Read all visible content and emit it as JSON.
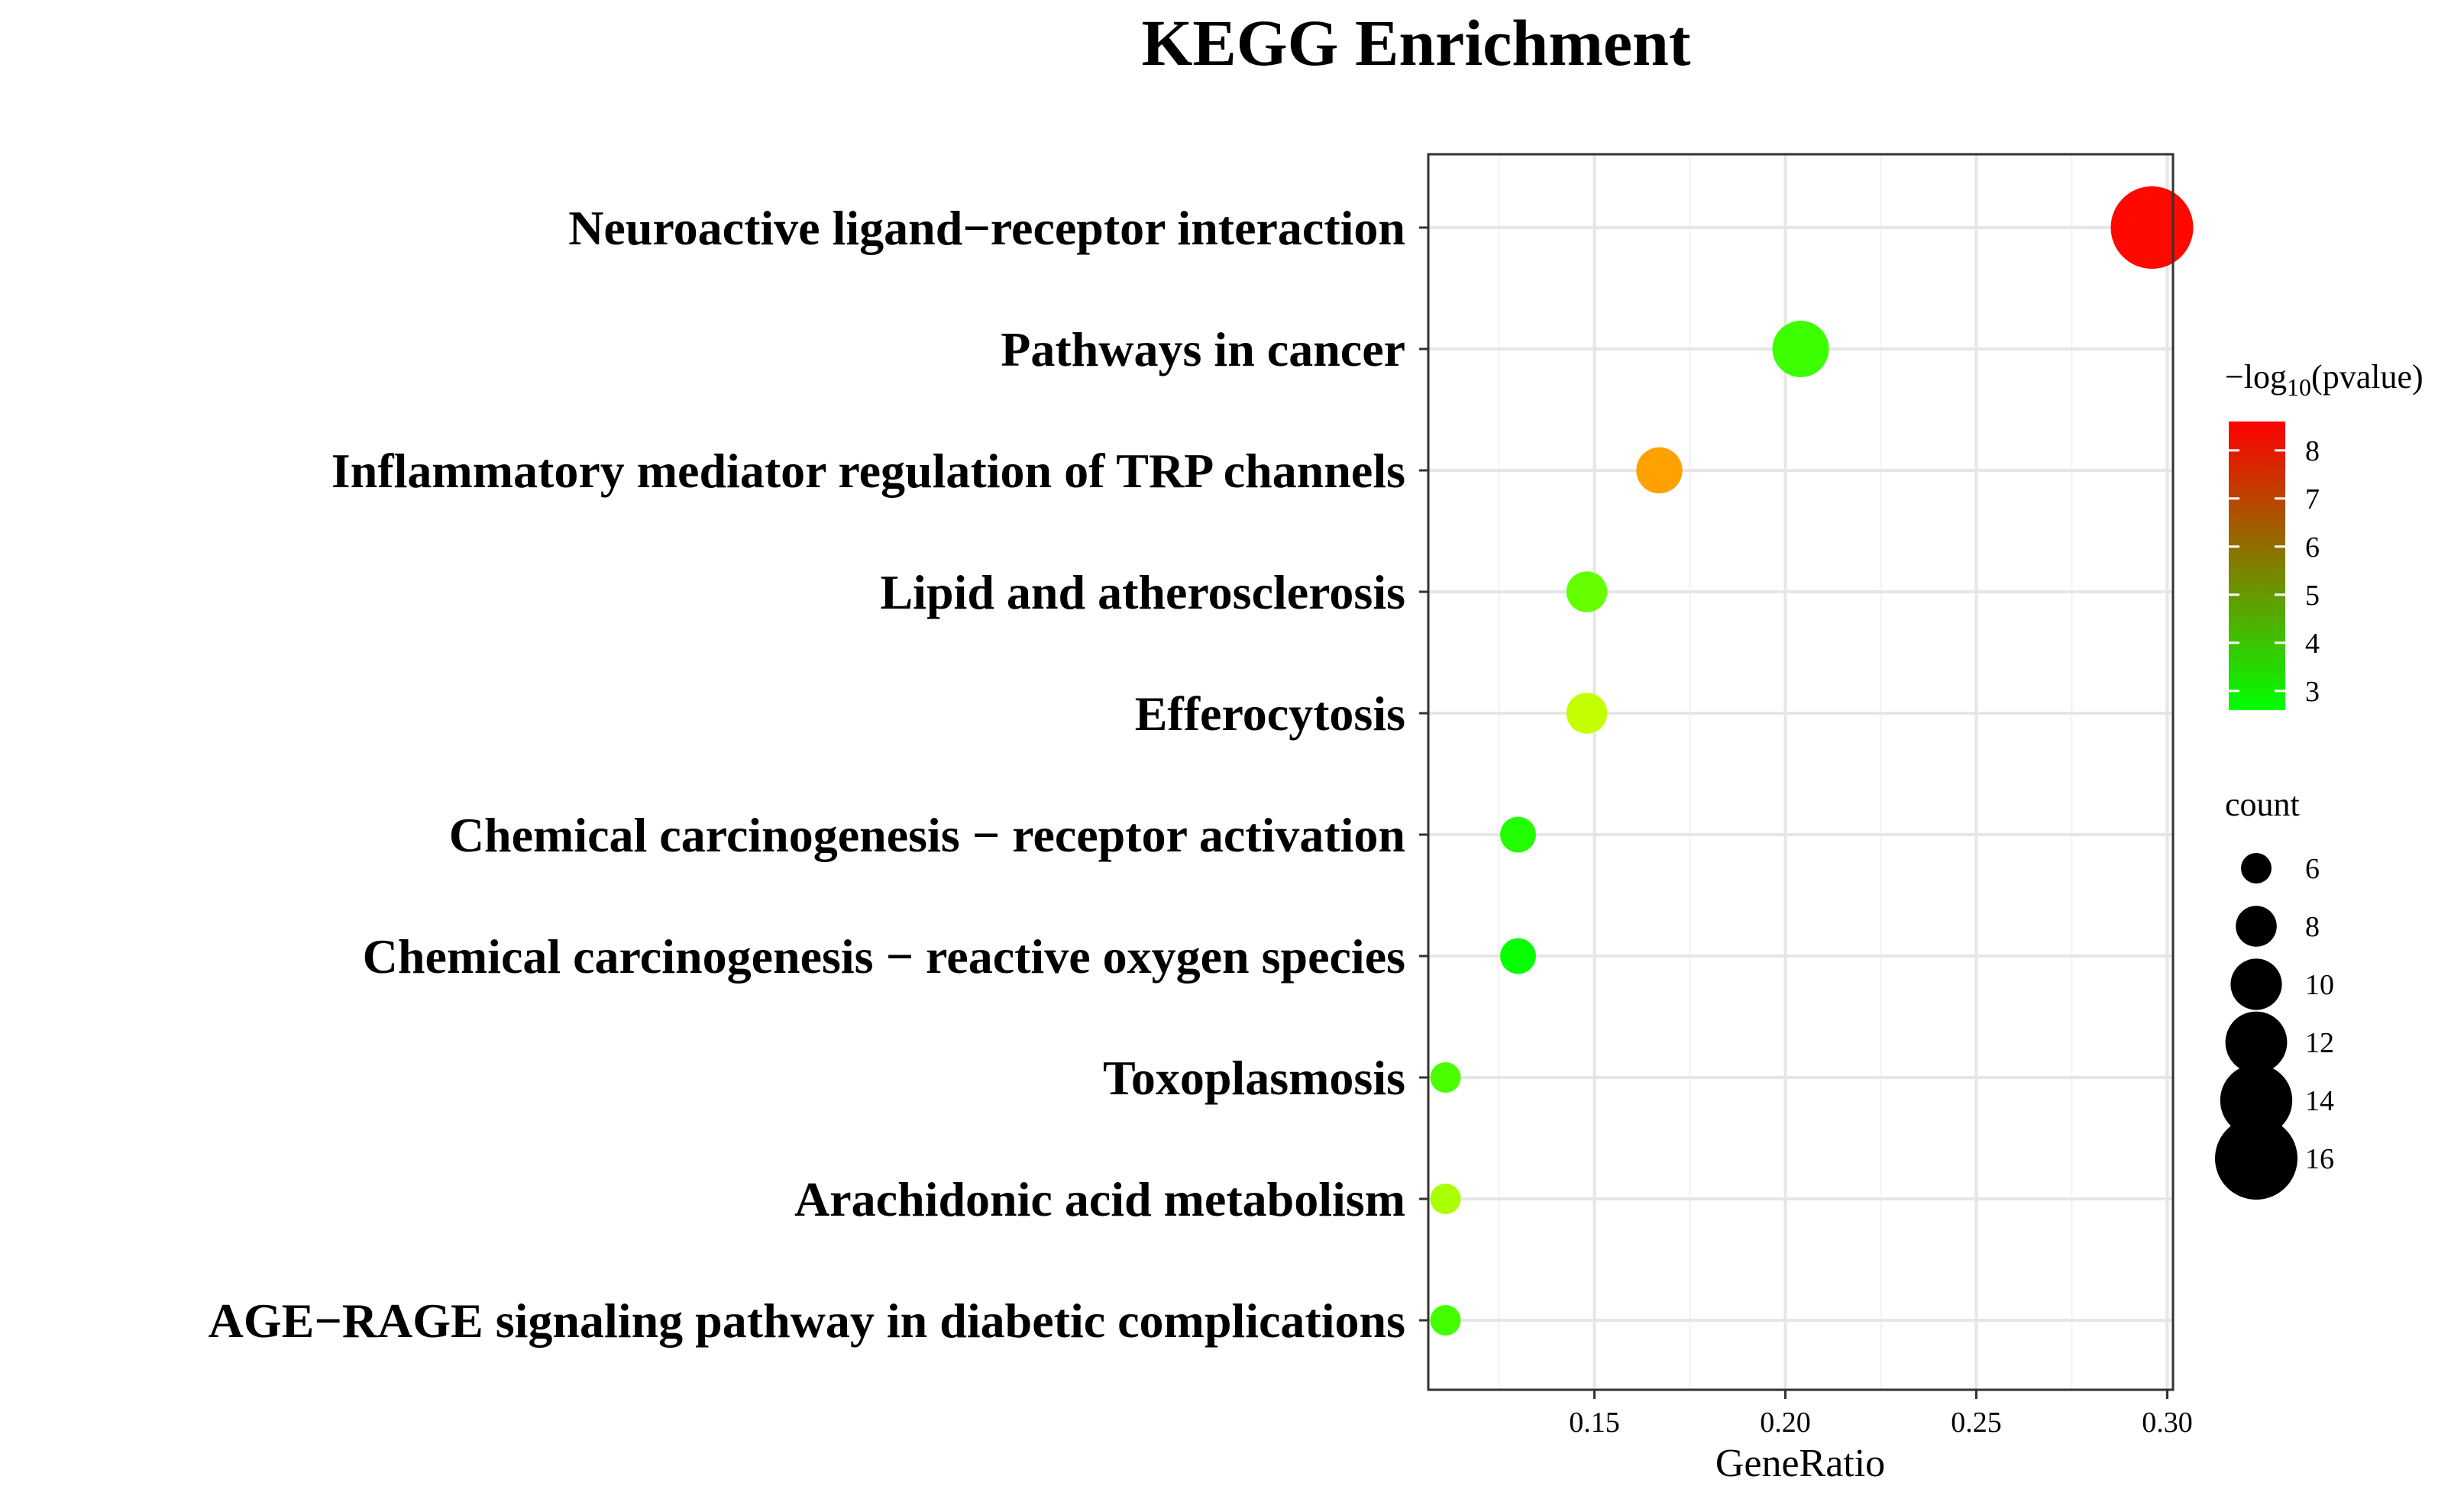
{
  "chart_data": {
    "type": "scatter",
    "title": "KEGG Enrichment",
    "xlabel": "GeneRatio",
    "ylabel": "",
    "xlim": [
      0.1065,
      0.3015
    ],
    "xticks": [
      "0.15",
      "0.20",
      "0.25",
      "0.30"
    ],
    "xtick_values": [
      0.15,
      0.2,
      0.25,
      0.3
    ],
    "grid": true,
    "points": [
      {
        "term": "Neuroactive ligand−receptor interaction",
        "gene_ratio": 0.296,
        "count": 16,
        "neg_log10_p": 8.5
      },
      {
        "term": "Pathways in cancer",
        "gene_ratio": 0.204,
        "count": 11,
        "neg_log10_p": 3.3
      },
      {
        "term": "Inflammatory mediator regulation of TRP channels",
        "gene_ratio": 0.167,
        "count": 9,
        "neg_log10_p": 6.7
      },
      {
        "term": "Lipid and atherosclerosis",
        "gene_ratio": 0.148,
        "count": 8,
        "neg_log10_p": 3.8
      },
      {
        "term": "Efferocytosis",
        "gene_ratio": 0.148,
        "count": 8,
        "neg_log10_p": 4.9
      },
      {
        "term": "Chemical carcinogenesis − receptor activation",
        "gene_ratio": 0.13,
        "count": 7,
        "neg_log10_p": 3.0
      },
      {
        "term": "Chemical carcinogenesis − reactive oxygen species",
        "gene_ratio": 0.13,
        "count": 7,
        "neg_log10_p": 2.7
      },
      {
        "term": "Toxoplasmosis",
        "gene_ratio": 0.111,
        "count": 6,
        "neg_log10_p": 3.5
      },
      {
        "term": "Arachidonic acid metabolism",
        "gene_ratio": 0.111,
        "count": 6,
        "neg_log10_p": 4.6
      },
      {
        "term": "AGE−RAGE signaling pathway in diabetic complications",
        "gene_ratio": 0.111,
        "count": 6,
        "neg_log10_p": 3.4
      }
    ],
    "color_legend": {
      "title_prefix": "−log",
      "title_sub": "10",
      "title_suffix": "(pvalue)",
      "min": 2.6,
      "max": 8.6,
      "ticks": [
        3,
        4,
        5,
        6,
        7,
        8
      ],
      "tick_labels": [
        "3",
        "4",
        "5",
        "6",
        "7",
        "8"
      ],
      "low_color": "#00ff00",
      "high_color": "#ff0000"
    },
    "size_legend": {
      "title": "count",
      "values": [
        6,
        8,
        10,
        12,
        14,
        16
      ],
      "labels": [
        "6",
        "8",
        "10",
        "12",
        "14",
        "16"
      ]
    }
  }
}
